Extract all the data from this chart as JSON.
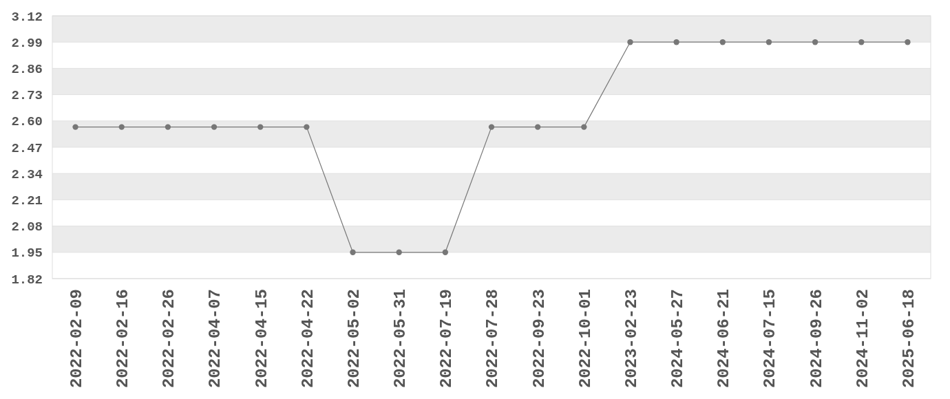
{
  "chart_data": {
    "type": "line",
    "categories": [
      "2022-02-09",
      "2022-02-16",
      "2022-02-26",
      "2022-04-07",
      "2022-04-15",
      "2022-04-22",
      "2022-05-02",
      "2022-05-31",
      "2022-07-19",
      "2022-07-28",
      "2022-09-23",
      "2022-10-01",
      "2023-02-23",
      "2024-05-27",
      "2024-06-21",
      "2024-07-15",
      "2024-09-26",
      "2024-11-02",
      "2025-06-18"
    ],
    "series": [
      {
        "color": "#777777",
        "values": [
          2.57,
          2.57,
          2.57,
          2.57,
          2.57,
          2.57,
          1.95,
          1.95,
          1.95,
          2.57,
          2.57,
          2.57,
          2.99,
          2.99,
          2.99,
          2.99,
          2.99,
          2.99,
          2.99
        ]
      }
    ],
    "ylim": [
      1.82,
      3.12
    ],
    "yticks": [
      1.82,
      1.95,
      2.08,
      2.21,
      2.34,
      2.47,
      {
        "value": 2.6,
        "label": "2.60"
      },
      2.73,
      2.86,
      2.99,
      3.12
    ],
    "grid": true,
    "marker": "circle",
    "line_style": "solid"
  }
}
